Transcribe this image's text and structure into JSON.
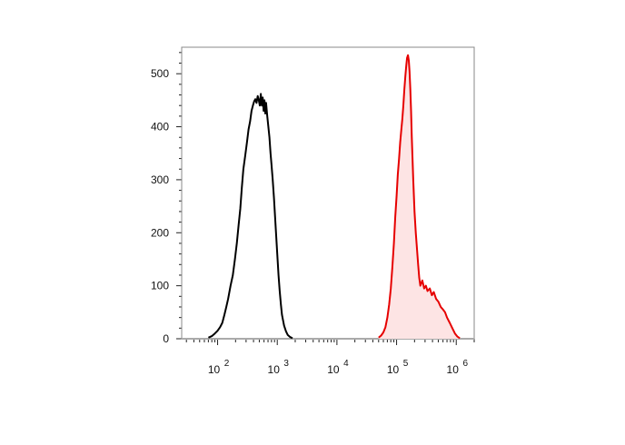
{
  "chart_data": {
    "type": "area",
    "title": "",
    "xlabel": "",
    "ylabel": "",
    "x_scale": "log",
    "xlim": [
      25,
      2000000
    ],
    "ylim": [
      0,
      550
    ],
    "y_ticks": [
      0,
      100,
      200,
      300,
      400,
      500
    ],
    "y_tick_labels": [
      "0",
      "100",
      "200",
      "300",
      "400",
      "500"
    ],
    "x_ticks": [
      {
        "value": 100,
        "base": "10",
        "exp": "2"
      },
      {
        "value": 1000,
        "base": "10",
        "exp": "3"
      },
      {
        "value": 10000,
        "base": "10",
        "exp": "4"
      },
      {
        "value": 100000,
        "base": "10",
        "exp": "5"
      },
      {
        "value": 1000000,
        "base": "10",
        "exp": "6"
      }
    ],
    "grid": false,
    "legend": "none",
    "series": [
      {
        "color": "#000000",
        "fill": "none",
        "x": [
          70,
          80,
          90,
          100,
          110,
          120,
          130,
          140,
          150,
          165,
          180,
          195,
          210,
          225,
          240,
          255,
          270,
          290,
          310,
          330,
          350,
          370,
          390,
          410,
          430,
          450,
          470,
          490,
          510,
          530,
          550,
          570,
          590,
          610,
          630,
          650,
          680,
          710,
          740,
          770,
          800,
          840,
          880,
          920,
          960,
          1000,
          1050,
          1100,
          1150,
          1200,
          1300,
          1400,
          1500,
          1650,
          1800
        ],
        "y": [
          2,
          5,
          10,
          15,
          22,
          30,
          45,
          60,
          75,
          100,
          120,
          150,
          180,
          215,
          245,
          285,
          320,
          345,
          370,
          395,
          410,
          430,
          440,
          448,
          452,
          445,
          458,
          450,
          440,
          462,
          440,
          455,
          430,
          450,
          425,
          445,
          420,
          400,
          380,
          350,
          330,
          300,
          265,
          230,
          195,
          160,
          120,
          90,
          65,
          45,
          25,
          14,
          7,
          3,
          1
        ]
      },
      {
        "color": "#e60000",
        "fill": "#fde4e4",
        "x": [
          50000,
          55000,
          60000,
          65000,
          70000,
          75000,
          80000,
          85000,
          90000,
          95000,
          100000,
          105000,
          110000,
          115000,
          120000,
          125000,
          130000,
          135000,
          140000,
          145000,
          150000,
          155000,
          160000,
          165000,
          170000,
          175000,
          180000,
          190000,
          200000,
          210000,
          220000,
          230000,
          240000,
          250000,
          270000,
          290000,
          310000,
          330000,
          360000,
          390000,
          420000,
          460000,
          500000,
          550000,
          600000,
          650000,
          700000,
          780000,
          860000,
          950000,
          1050000,
          1150000
        ],
        "y": [
          2,
          6,
          12,
          22,
          40,
          65,
          95,
          135,
          180,
          230,
          270,
          310,
          340,
          370,
          395,
          415,
          440,
          470,
          495,
          515,
          530,
          535,
          525,
          505,
          470,
          430,
          380,
          300,
          240,
          200,
          170,
          140,
          115,
          100,
          110,
          95,
          100,
          90,
          95,
          82,
          88,
          75,
          70,
          60,
          55,
          50,
          40,
          30,
          20,
          10,
          4,
          1
        ]
      }
    ]
  }
}
